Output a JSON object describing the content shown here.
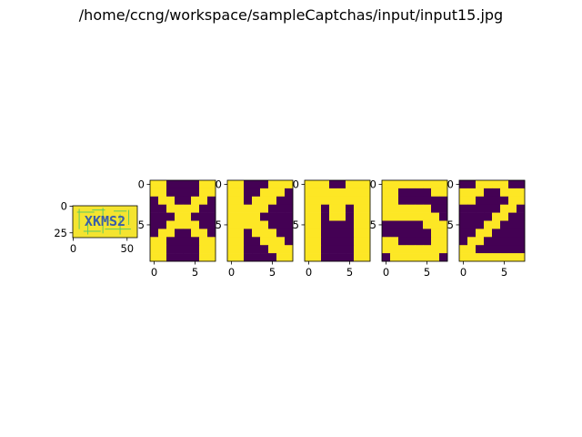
{
  "title": "/home/ccng/workspace/sampleCaptchas/input/input15.jpg",
  "colors": {
    "low": "#440154",
    "high": "#fde725",
    "captcha_bg": "#f4e430",
    "captcha_text": "#3b5ea8",
    "captcha_noise": "#5ec962"
  },
  "chart_data": [
    {
      "type": "heatmap",
      "name": "captcha-image",
      "text_in_image": "XKMS2",
      "xlim": [
        0,
        59
      ],
      "ylim": [
        29,
        0
      ],
      "xticks": [
        0,
        50
      ],
      "yticks": [
        0,
        25
      ],
      "xtick_labels": [
        "0",
        "50"
      ],
      "ytick_labels": [
        "0",
        "25"
      ]
    },
    {
      "type": "heatmap",
      "name": "char-X",
      "xticks": [
        0,
        5
      ],
      "yticks": [
        0,
        5
      ],
      "xtick_labels": [
        "0",
        "5"
      ],
      "ytick_labels": [
        "0",
        "5"
      ],
      "grid": [
        "11000011",
        "11000011",
        "01100110",
        "00111100",
        "00011000",
        "00111100",
        "01100110",
        "11000011",
        "11000011",
        "11000011"
      ]
    },
    {
      "type": "heatmap",
      "name": "char-K",
      "xticks": [
        0,
        5
      ],
      "yticks": [
        0,
        5
      ],
      "xtick_labels": [
        "0",
        "5"
      ],
      "ytick_labels": [
        "0",
        "5"
      ],
      "grid": [
        "11000111",
        "11001110",
        "11011100",
        "11111000",
        "11110000",
        "11111000",
        "11011100",
        "11001110",
        "11000111",
        "11000011"
      ]
    },
    {
      "type": "heatmap",
      "name": "char-M",
      "xticks": [
        0,
        5
      ],
      "yticks": [
        0,
        5
      ],
      "xtick_labels": [
        "0",
        "5"
      ],
      "ytick_labels": [
        "0",
        "5"
      ],
      "grid": [
        "11100111",
        "11111111",
        "11111111",
        "11011011",
        "11011011",
        "11000011",
        "11000011",
        "11000011",
        "11000011",
        "11000011"
      ]
    },
    {
      "type": "heatmap",
      "name": "char-S",
      "xticks": [
        0,
        5
      ],
      "yticks": [
        0,
        5
      ],
      "xtick_labels": [
        "0",
        "5"
      ],
      "ytick_labels": [
        "0",
        "5"
      ],
      "grid": [
        "11111111",
        "11000011",
        "11000000",
        "11111100",
        "11111110",
        "00000111",
        "00000011",
        "11000011",
        "11111111",
        "01111110"
      ]
    },
    {
      "type": "heatmap",
      "name": "char-2",
      "xticks": [
        0,
        5
      ],
      "yticks": [
        0,
        5
      ],
      "xtick_labels": [
        "0",
        "5"
      ],
      "ytick_labels": [
        "0",
        "5"
      ],
      "grid": [
        "00111100",
        "11100111",
        "11000011",
        "00000110",
        "00001100",
        "00011000",
        "00110000",
        "01100000",
        "11000000",
        "11111111"
      ]
    }
  ]
}
